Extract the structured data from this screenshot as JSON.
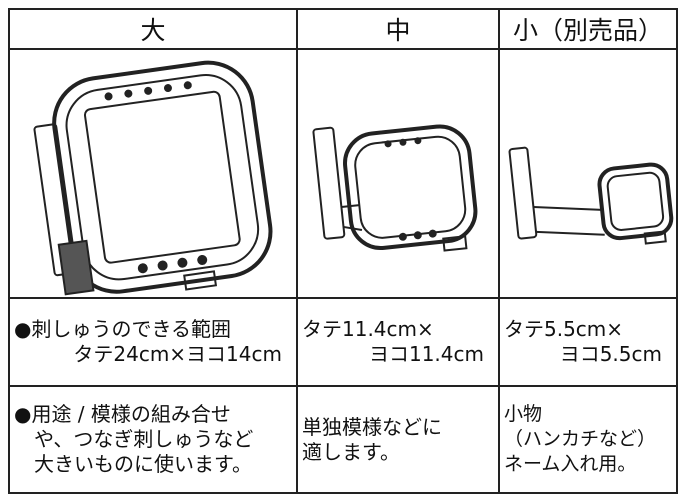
{
  "table": {
    "header": [
      "大",
      "中",
      "小（別売品）"
    ],
    "rows": [
      [
        [
          "●刺しゅうのできる範囲",
          "タテ24cm×ヨコ14cm"
        ],
        [
          "タテ11.4cm×",
          "ヨコ11.4cm"
        ],
        [
          "タテ5.5cm×",
          "ヨコ5.5cm"
        ]
      ],
      [
        [
          "●用途 / 模様の組み合せ",
          "や、つなぎ刺しゅうなど",
          "大きいものに使います。"
        ],
        [
          "単独模様などに",
          "適します。"
        ],
        [
          "小物",
          "（ハンカチなど）",
          "ネーム入れ用。"
        ]
      ]
    ]
  }
}
